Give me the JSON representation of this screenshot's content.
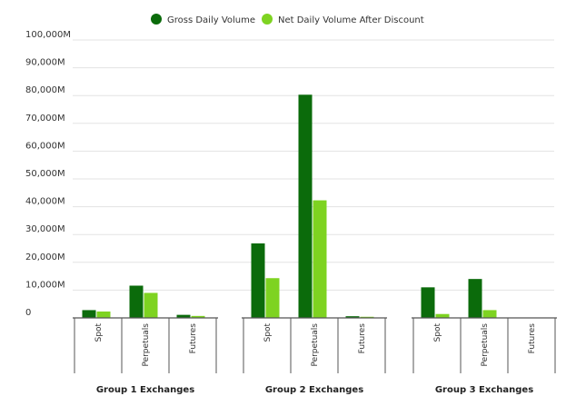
{
  "chart_data": {
    "type": "bar",
    "legend_position": "top-center",
    "grid": true,
    "ylim": [
      0,
      100000
    ],
    "y_ticks": [
      {
        "value": 0,
        "label": "0"
      },
      {
        "value": 10000,
        "label": "10,000M"
      },
      {
        "value": 20000,
        "label": "20,000M"
      },
      {
        "value": 30000,
        "label": "30,000M"
      },
      {
        "value": 40000,
        "label": "40,000M"
      },
      {
        "value": 50000,
        "label": "50,000M"
      },
      {
        "value": 60000,
        "label": "60,000M"
      },
      {
        "value": 70000,
        "label": "70,000M"
      },
      {
        "value": 80000,
        "label": "80,000M"
      },
      {
        "value": 90000,
        "label": "90,000M"
      },
      {
        "value": 100000,
        "label": "100,000M"
      }
    ],
    "groups": [
      {
        "name": "Group 1 Exchanges",
        "categories": [
          "Spot",
          "Perpetuals",
          "Futures"
        ]
      },
      {
        "name": "Group 2 Exchanges",
        "categories": [
          "Spot",
          "Perpetuals",
          "Futures"
        ]
      },
      {
        "name": "Group 3 Exchanges",
        "categories": [
          "Spot",
          "Perpetuals",
          "Futures"
        ]
      }
    ],
    "series": [
      {
        "name": "Gross Daily Volume",
        "color": "#0b6b0b",
        "values": [
          [
            2800,
            11600,
            1100
          ],
          [
            26800,
            80300,
            600
          ],
          [
            11000,
            14000,
            0
          ]
        ]
      },
      {
        "name": "Net Daily Volume After Discount",
        "color": "#7ed321",
        "values": [
          [
            2300,
            9000,
            700
          ],
          [
            14300,
            42300,
            400
          ],
          [
            1400,
            2800,
            0
          ]
        ]
      }
    ]
  }
}
